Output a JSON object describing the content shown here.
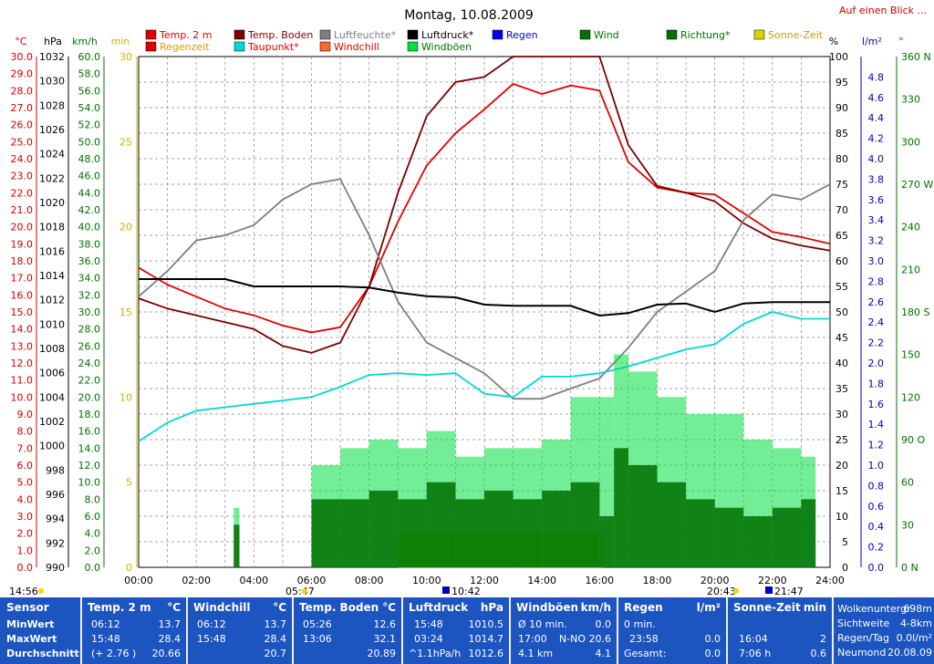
{
  "title": "Montag, 10.08.2009",
  "link": "Auf einen Blick ...",
  "legend": [
    {
      "label": "Temp. 2 m",
      "color": "#e00000",
      "text": "#e00000"
    },
    {
      "label": "Temp. Boden",
      "color": "#7a0000",
      "text": "#7a0000"
    },
    {
      "label": "Luftfeuchte*",
      "color": "#7f7f7f",
      "text": "#7f7f7f"
    },
    {
      "label": "Luftdruck*",
      "color": "#000000",
      "text": "#000000"
    },
    {
      "label": "Regen",
      "color": "#0000e0",
      "text": "#0000e0"
    },
    {
      "label": "Wind",
      "color": "#007000",
      "text": "#007000"
    },
    {
      "label": "Richtung*",
      "color": "#007000",
      "text": "#007000"
    },
    {
      "label": "Sonne-Zeit",
      "color": "#d4d400",
      "text": "#c8a000"
    },
    {
      "label": "Regenzeit",
      "color": "#e00000",
      "text": "#d4a000"
    },
    {
      "label": "Taupunkt*",
      "color": "#00d8d8",
      "text": "#e00000"
    },
    {
      "label": "Windchill",
      "color": "#ff6a2a",
      "text": "#e00000"
    },
    {
      "label": "Windböen",
      "color": "#00e040",
      "text": "#007000"
    }
  ],
  "chart_data": {
    "type": "line",
    "x_axis": {
      "labels": [
        "00:00",
        "02:00",
        "04:00",
        "06:00",
        "08:00",
        "10:00",
        "12:00",
        "14:00",
        "16:00",
        "18:00",
        "20:00",
        "22:00",
        "24:00"
      ]
    },
    "axes": {
      "temp_c": {
        "unit": "°C",
        "min": 0,
        "max": 30,
        "labels": [
          "30.0",
          "29.0",
          "28.0",
          "27.0",
          "26.0",
          "25.0",
          "24.0",
          "23.0",
          "22.0",
          "21.0",
          "20.0",
          "19.0",
          "18.0",
          "17.0",
          "16.0",
          "15.0",
          "14.0",
          "13.0",
          "12.0",
          "11.0",
          "10.0",
          "9.0",
          "8.0",
          "7.0",
          "6.0",
          "5.0",
          "4.0",
          "3.0",
          "2.0",
          "1.0",
          "0.0"
        ]
      },
      "pressure_hpa": {
        "unit": "hPa",
        "min": 990,
        "max": 1032,
        "labels": [
          "1032",
          "1030",
          "1028",
          "1026",
          "1024",
          "1022",
          "1020",
          "1018",
          "1016",
          "1014",
          "1012",
          "1010",
          "1008",
          "1006",
          "1004",
          "1002",
          "1000",
          "998",
          "996",
          "994",
          "992",
          "990"
        ]
      },
      "wind_kmh": {
        "unit": "km/h",
        "min": 0,
        "max": 60,
        "labels": [
          "60.0",
          "58.0",
          "56.0",
          "54.0",
          "52.0",
          "50.0",
          "48.0",
          "46.0",
          "44.0",
          "42.0",
          "40.0",
          "38.0",
          "36.0",
          "34.0",
          "32.0",
          "30.0",
          "28.0",
          "26.0",
          "24.0",
          "22.0",
          "20.0",
          "18.0",
          "16.0",
          "14.0",
          "12.0",
          "10.0",
          "8.0",
          "6.0",
          "4.0",
          "2.0",
          "0.0"
        ]
      },
      "minutes": {
        "unit": "min",
        "min": 0,
        "max": 30,
        "labels": [
          "30",
          "25",
          "20",
          "15",
          "10",
          "5",
          "0"
        ]
      },
      "humidity_pct": {
        "unit": "%",
        "min": 0,
        "max": 100,
        "labels": [
          "100",
          "95",
          "90",
          "85",
          "80",
          "75",
          "70",
          "65",
          "60",
          "55",
          "50",
          "45",
          "40",
          "35",
          "30",
          "25",
          "20",
          "15",
          "10",
          "5",
          "0"
        ]
      },
      "rain_lm2": {
        "unit": "l/m²",
        "min": 0,
        "max": 5,
        "labels": [
          "4.8",
          "4.6",
          "4.4",
          "4.2",
          "4.0",
          "3.8",
          "3.6",
          "3.4",
          "3.2",
          "3.0",
          "2.8",
          "2.6",
          "2.4",
          "2.2",
          "2.0",
          "1.8",
          "1.6",
          "1.4",
          "1.2",
          "1.0",
          "0.8",
          "0.6",
          "0.4",
          "0.2",
          "0.0"
        ]
      },
      "direction_deg": {
        "unit": "°",
        "min": 0,
        "max": 360,
        "labels": [
          "360 N",
          "330",
          "300",
          "270 W",
          "240",
          "210",
          "180 S",
          "150",
          "120",
          "90 O",
          "60",
          "30",
          "0 N"
        ]
      }
    },
    "series": [
      {
        "name": "Temp. 2 m",
        "axis": "temp_c",
        "x": [
          0,
          1,
          2,
          3,
          4,
          5,
          6,
          7,
          8,
          9,
          10,
          11,
          12,
          13,
          14,
          15,
          16,
          17,
          18,
          19,
          20,
          21,
          22,
          23,
          24
        ],
        "y": [
          17.6,
          16.6,
          15.9,
          15.2,
          14.8,
          14.2,
          13.8,
          14.1,
          16.5,
          20.3,
          23.6,
          25.5,
          26.9,
          28.4,
          27.8,
          28.3,
          28.0,
          23.8,
          22.3,
          22.0,
          21.9,
          20.8,
          19.7,
          19.4,
          19.0
        ]
      },
      {
        "name": "Temp. Boden",
        "axis": "temp_c",
        "x": [
          0,
          1,
          2,
          3,
          4,
          5,
          6,
          7,
          8,
          9,
          10,
          11,
          12,
          13,
          14,
          15,
          16,
          17,
          18,
          19,
          20,
          21,
          22,
          23,
          24
        ],
        "y": [
          15.8,
          15.2,
          14.8,
          14.4,
          14.0,
          13.0,
          12.6,
          13.2,
          16.5,
          22.0,
          26.5,
          28.5,
          28.8,
          31.0,
          32.0,
          31.5,
          30.5,
          24.8,
          22.4,
          22.0,
          21.5,
          20.2,
          19.3,
          18.9,
          18.6
        ]
      },
      {
        "name": "Luftfeuchte*",
        "axis": "humidity_pct",
        "x": [
          0,
          1,
          2,
          3,
          4,
          5,
          6,
          7,
          8,
          9,
          10,
          11,
          12,
          13,
          14,
          15,
          16,
          17,
          18,
          19,
          20,
          21,
          22,
          23,
          24
        ],
        "y": [
          53,
          58,
          64,
          65,
          67,
          72,
          75,
          76,
          65,
          52,
          44,
          41,
          38,
          33,
          33,
          35,
          37,
          43,
          50,
          54,
          58,
          68,
          73,
          72,
          75
        ]
      },
      {
        "name": "Luftdruck*",
        "axis": "pressure_hpa",
        "x": [
          0,
          1,
          2,
          3,
          4,
          5,
          6,
          7,
          8,
          9,
          10,
          11,
          12,
          13,
          14,
          15,
          16,
          17,
          18,
          19,
          20,
          21,
          22,
          23,
          24
        ],
        "y": [
          1013.7,
          1013.7,
          1013.7,
          1013.7,
          1013.1,
          1013.1,
          1013.1,
          1013.1,
          1013.0,
          1012.6,
          1012.3,
          1012.2,
          1011.6,
          1011.5,
          1011.5,
          1011.5,
          1010.7,
          1010.9,
          1011.6,
          1011.7,
          1011.0,
          1011.7,
          1011.8,
          1011.8,
          1011.8
        ]
      },
      {
        "name": "Taupunkt*",
        "axis": "temp_c",
        "x": [
          0,
          1,
          2,
          3,
          4,
          5,
          6,
          7,
          8,
          9,
          10,
          11,
          12,
          13,
          14,
          15,
          16,
          17,
          18,
          19,
          20,
          21,
          22,
          23,
          24
        ],
        "y": [
          7.4,
          8.5,
          9.2,
          9.4,
          9.6,
          9.8,
          10.0,
          10.6,
          11.3,
          11.4,
          11.3,
          11.4,
          10.2,
          10.0,
          11.2,
          11.2,
          11.4,
          11.8,
          12.3,
          12.8,
          13.1,
          14.3,
          15.0,
          14.6,
          14.6
        ]
      },
      {
        "name": "Windböen",
        "axis": "wind_kmh",
        "x": [
          0,
          3.3,
          3.5,
          6.0,
          7.0,
          8.0,
          9.0,
          10.0,
          11.0,
          12.0,
          13.0,
          14.0,
          15.0,
          16.0,
          16.5,
          17.0,
          18.0,
          19.0,
          20.0,
          21.0,
          22.0,
          23.0,
          23.5
        ],
        "y": [
          0,
          7,
          0,
          12,
          14,
          15,
          14,
          16,
          13,
          14,
          14,
          15,
          20,
          20,
          25,
          23,
          20,
          18,
          18,
          15,
          14,
          13,
          15
        ]
      },
      {
        "name": "Wind",
        "axis": "wind_kmh",
        "x": [
          0,
          3.3,
          3.5,
          6.0,
          7.0,
          8.0,
          9.0,
          10.0,
          11.0,
          12.0,
          13.0,
          14.0,
          15.0,
          16.0,
          16.5,
          17.0,
          18.0,
          19.0,
          20.0,
          21.0,
          22.0,
          23.0,
          23.5
        ],
        "y": [
          0,
          5,
          0,
          8,
          8,
          9,
          8,
          10,
          8,
          9,
          8,
          9,
          10,
          6,
          14,
          12,
          10,
          8,
          7,
          6,
          7,
          8,
          9
        ]
      }
    ],
    "sun_block": {
      "start": 9.0,
      "end": 16.1,
      "minutes": 2
    },
    "bottom_markers": {
      "left": "14:56",
      "sunrise": "05:47",
      "moonrise": "10:42",
      "sunset": "20:43",
      "moonset": "21:47"
    }
  },
  "table": {
    "sensor": {
      "header": "Sensor",
      "rows": [
        "MinWert",
        "MaxWert",
        "Durchschnitt"
      ]
    },
    "temp2m": {
      "header": "Temp. 2 m",
      "unit": "°C",
      "rows": [
        [
          "06:12",
          "13.7"
        ],
        [
          "15:48",
          "28.4"
        ],
        [
          "(+ 2.76 )",
          "20.66"
        ]
      ]
    },
    "windchill": {
      "header": "Windchill",
      "unit": "°C",
      "rows": [
        [
          "06:12",
          "13.7"
        ],
        [
          "15:48",
          "28.4"
        ],
        [
          "",
          "20.7"
        ]
      ]
    },
    "tempboden": {
      "header": "Temp. Boden",
      "unit": "°C",
      "rows": [
        [
          "05:26",
          "12.6"
        ],
        [
          "13:06",
          "32.1"
        ],
        [
          "",
          "20.89"
        ]
      ]
    },
    "luftdruck": {
      "header": "Luftdruck",
      "unit": "hPa",
      "rows": [
        [
          "15:48",
          "1010.5"
        ],
        [
          "03:24",
          "1014.7"
        ],
        [
          "^1.1hPa/h",
          "1012.6"
        ]
      ]
    },
    "windboeen": {
      "header": "Windböen",
      "unit": "km/h",
      "rows": [
        [
          "Ø 10 min.",
          "",
          "0.0"
        ],
        [
          "17:00",
          "N-NO 20.6",
          ""
        ],
        [
          "4.1 km",
          "",
          "4.1"
        ]
      ]
    },
    "regen": {
      "header": "Regen",
      "unit": "l/m²",
      "rows": [
        [
          "0 min.",
          ""
        ],
        [
          "23:58",
          "0.0"
        ],
        [
          "Gesamt:",
          "0.0"
        ]
      ]
    },
    "sonne": {
      "header": "Sonne-Zeit",
      "unit": "min",
      "rows": [
        [
          "",
          ""
        ],
        [
          "16:04",
          "2"
        ],
        [
          "7:06 h",
          "0.6"
        ]
      ]
    },
    "extra": {
      "rows": [
        [
          "Wolkenuntergr.",
          "698m"
        ],
        [
          "Sichtweite",
          "4-8km"
        ],
        [
          "Regen/Tag",
          "0.0l/m²"
        ],
        [
          "Neumond",
          "20.08.09"
        ]
      ]
    }
  }
}
